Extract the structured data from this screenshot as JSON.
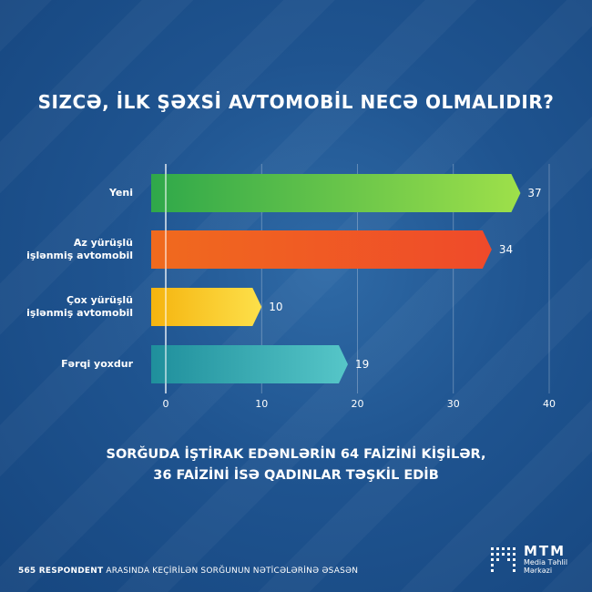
{
  "chart_data": {
    "type": "bar",
    "orientation": "horizontal",
    "title": "SIZCƏ, İLK ŞƏXSİ AVTOMOBİL NECƏ OLMALIDIR?",
    "categories": [
      [
        "Yeni"
      ],
      [
        "Az yürüşlü",
        "işlənmiş avtomobil"
      ],
      [
        "Çox yürüşlü",
        "işlənmiş avtomobil"
      ],
      [
        "Fərqi yoxdur"
      ]
    ],
    "values": [
      37,
      34,
      10,
      19
    ],
    "value_labels": [
      "37",
      "34",
      "10",
      "19"
    ],
    "xlim": [
      0,
      40
    ],
    "xticks": [
      "0",
      "10",
      "20",
      "30",
      "40"
    ],
    "grid": true,
    "colors": [
      [
        "#2fa84a",
        "#9ee04a"
      ],
      [
        "#f06a1e",
        "#ef4a2a"
      ],
      [
        "#f5b40f",
        "#fde04a"
      ],
      [
        "#1f8f9c",
        "#56c6c8"
      ]
    ]
  },
  "footnote": {
    "line1": "SORĞUDA İŞTİRAK EDƏNLƏRİN 64 FAİZİNİ KİŞİLƏR,",
    "line2": "36 FAİZİNİ İSƏ QADINLAR TƏŞKİL EDİB"
  },
  "bottom_note": {
    "bold": "565 RESPONDENT",
    "rest": " ARASINDA KEÇİRİLƏN SORĞUNUN NƏTİCƏLƏRİNƏ ƏSASƏN"
  },
  "logo": {
    "name": "MTM",
    "line1": "Media Təhlil",
    "line2": "Mərkəzi"
  }
}
